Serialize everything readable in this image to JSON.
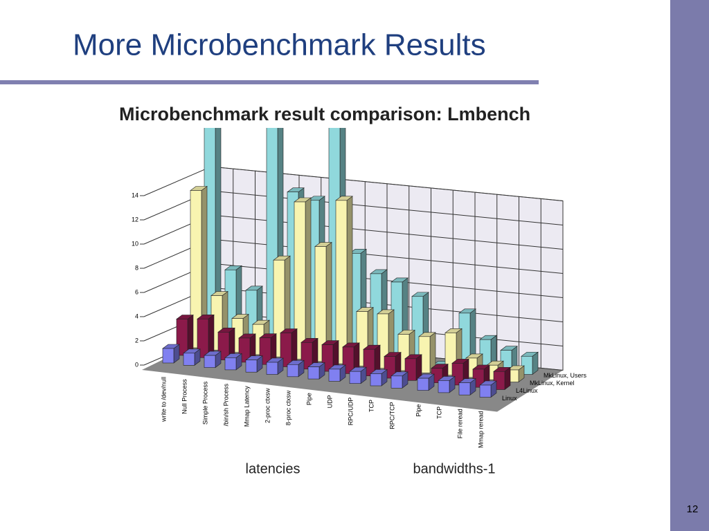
{
  "slide": {
    "title": "More Microbenchmark Results",
    "page_number": "12"
  },
  "chart_data": {
    "type": "bar3d",
    "title": "Microbenchmark result comparison: Lmbench",
    "categories": [
      "write to /dev/null",
      "Null Process",
      "Simple Process",
      "/bin/sh Process",
      "Mmap Latency",
      "2-proc ctxsw",
      "8-proc ctxsw",
      "Pipe",
      "UDP",
      "RPC/UDP",
      "TCP",
      "RPC/TCP",
      "Pipe",
      "TCP",
      "File reread",
      "Mmap reread"
    ],
    "groups": [
      "latencies",
      "bandwidths-1"
    ],
    "series": [
      {
        "name": "Linux",
        "color": "#8080f0",
        "values": [
          1.2,
          1,
          1,
          1,
          1,
          1,
          1,
          1,
          1,
          1,
          1,
          1,
          1,
          1,
          1,
          1
        ]
      },
      {
        "name": "L4Linux",
        "color": "#8b1a4a",
        "values": [
          3,
          3.2,
          2.3,
          2,
          2.2,
          2.8,
          2.2,
          2.2,
          2.2,
          2.2,
          1.8,
          1.8,
          1.2,
          1.8,
          1.5,
          1.5
        ]
      },
      {
        "name": "MkLinux, Kernel",
        "color": "#f8f4b0",
        "values": [
          13,
          4.5,
          2.8,
          2.5,
          8,
          13,
          9.5,
          13.5,
          4.5,
          4.5,
          3,
          3,
          3.5,
          1.6,
          1.2,
          1
        ]
      },
      {
        "name": "MkLinux, Users",
        "color": "#90d8dc",
        "values": [
          30,
          6,
          4.5,
          30,
          13,
          12.5,
          30,
          8.5,
          7,
          6.5,
          5.5,
          0,
          4.5,
          2.5,
          1.8,
          1.5
        ]
      }
    ],
    "ylim": [
      0,
      14
    ],
    "yticks": [
      0,
      2,
      4,
      6,
      8,
      10,
      12,
      14
    ],
    "grid": true
  }
}
